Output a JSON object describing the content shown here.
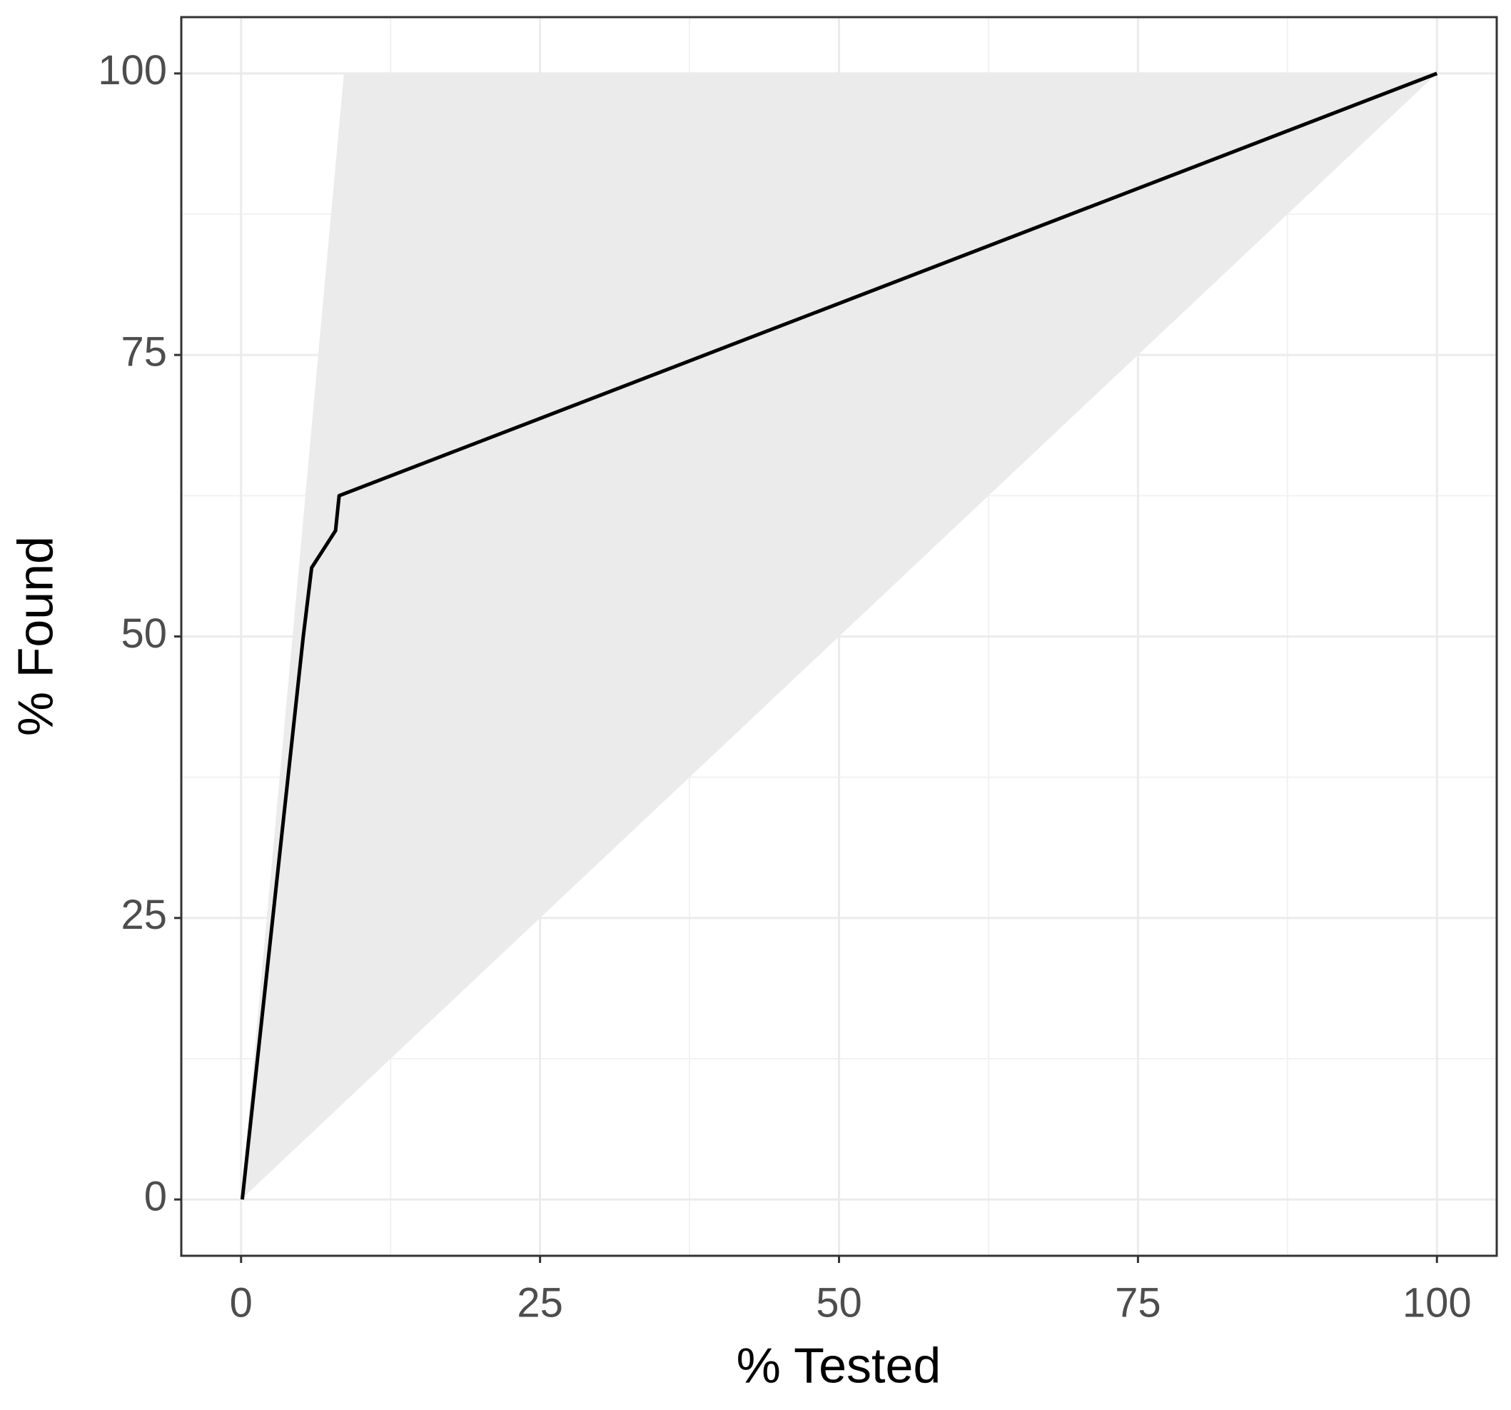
{
  "chart_data": {
    "type": "line",
    "x_label": "% Tested",
    "y_label": "% Found",
    "xlim": [
      -5,
      105
    ],
    "ylim": [
      -5,
      105
    ],
    "xticks": [
      0,
      25,
      50,
      75,
      100
    ],
    "yticks": [
      0,
      25,
      50,
      75,
      100
    ],
    "grid": true,
    "minor_grid": true,
    "band": {
      "color": "#ebebeb",
      "x": [
        0,
        8.6,
        100
      ],
      "upper": [
        0,
        100,
        100
      ],
      "lower": [
        0,
        8.6,
        100
      ]
    },
    "series": [
      {
        "color": "#000000",
        "x": [
          0.1,
          5.2,
          5.9,
          7.9,
          8.2,
          100
        ],
        "values": [
          0,
          50,
          56.1,
          59.4,
          62.5,
          100
        ]
      }
    ]
  }
}
